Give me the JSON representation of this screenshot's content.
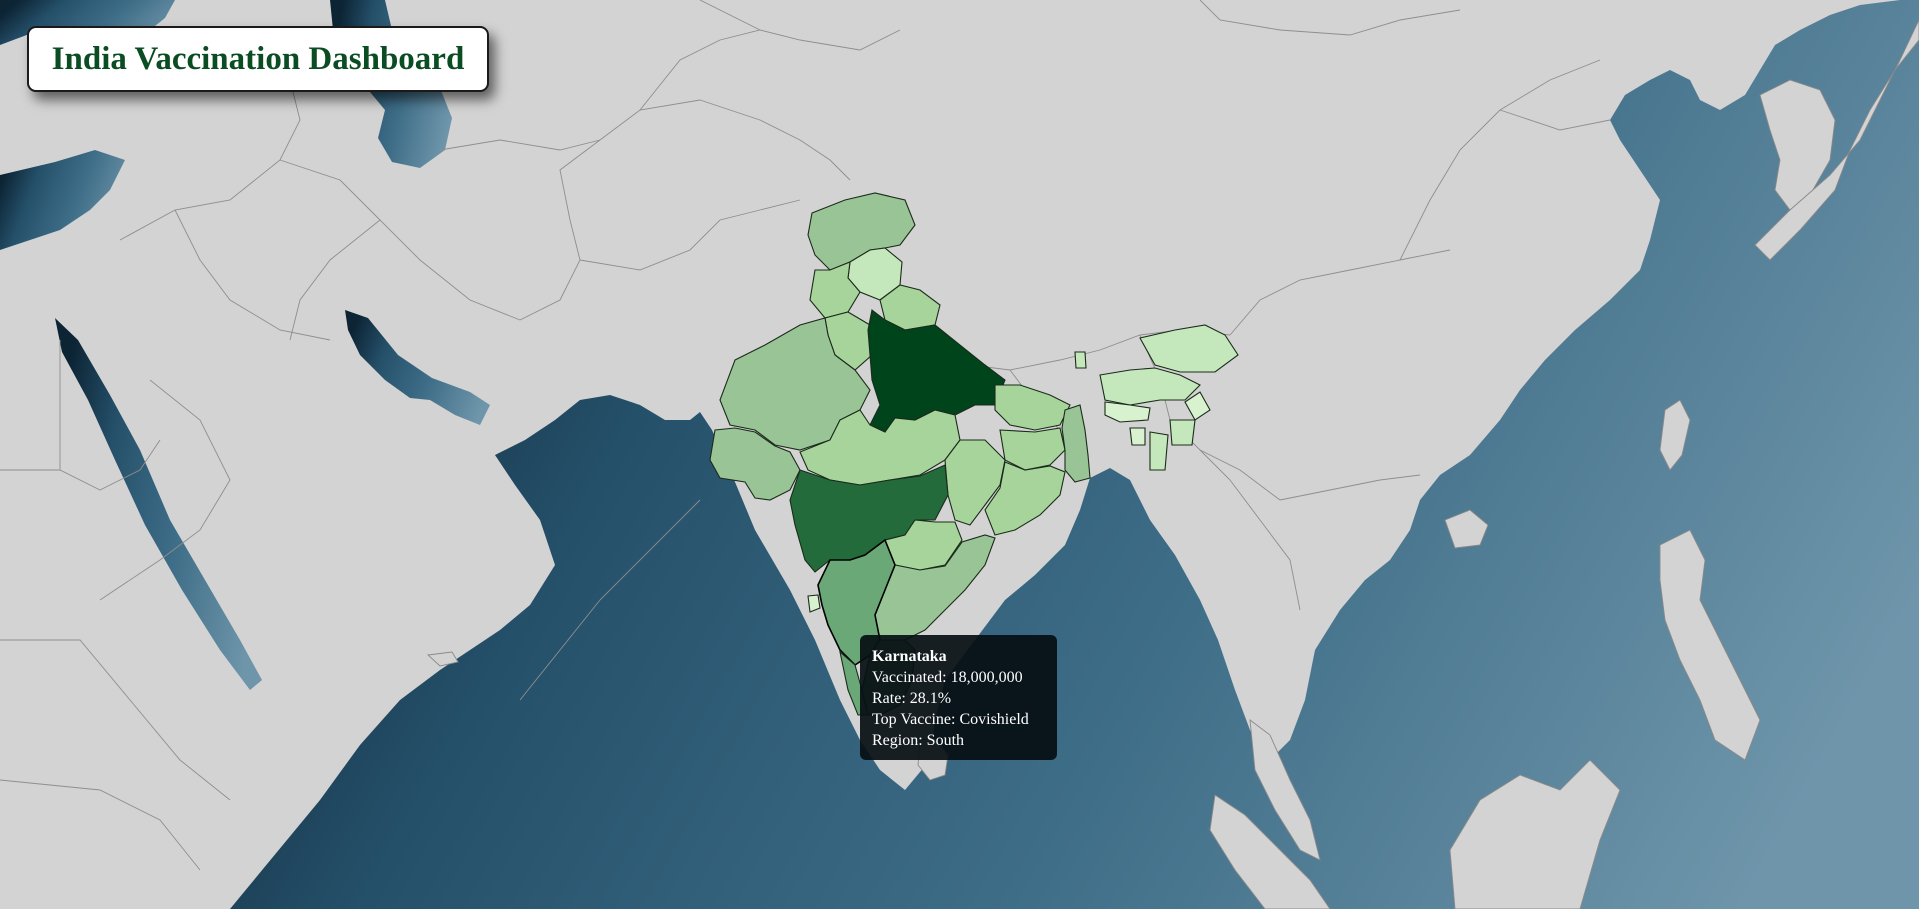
{
  "header": {
    "title": "India Vaccination Dashboard"
  },
  "tooltip": {
    "state_name": "Karnataka",
    "vaccinated_label": "Vaccinated:",
    "vaccinated_value": "18,000,000",
    "rate_label": "Rate:",
    "rate_value": "28.1%",
    "top_vaccine_label": "Top Vaccine:",
    "top_vaccine_value": "Covishield",
    "region_label": "Region:",
    "region_value": "South"
  },
  "colors": {
    "land": "#d3d3d3",
    "ocean_dark": "#0f2c40",
    "ocean_light": "#6c93a8",
    "title_text": "#0b4d22",
    "choropleth_scale": [
      "#d8f2d0",
      "#c4e8bb",
      "#a6d49b",
      "#99c596",
      "#6aa877",
      "#246b3b",
      "#00441b"
    ]
  }
}
